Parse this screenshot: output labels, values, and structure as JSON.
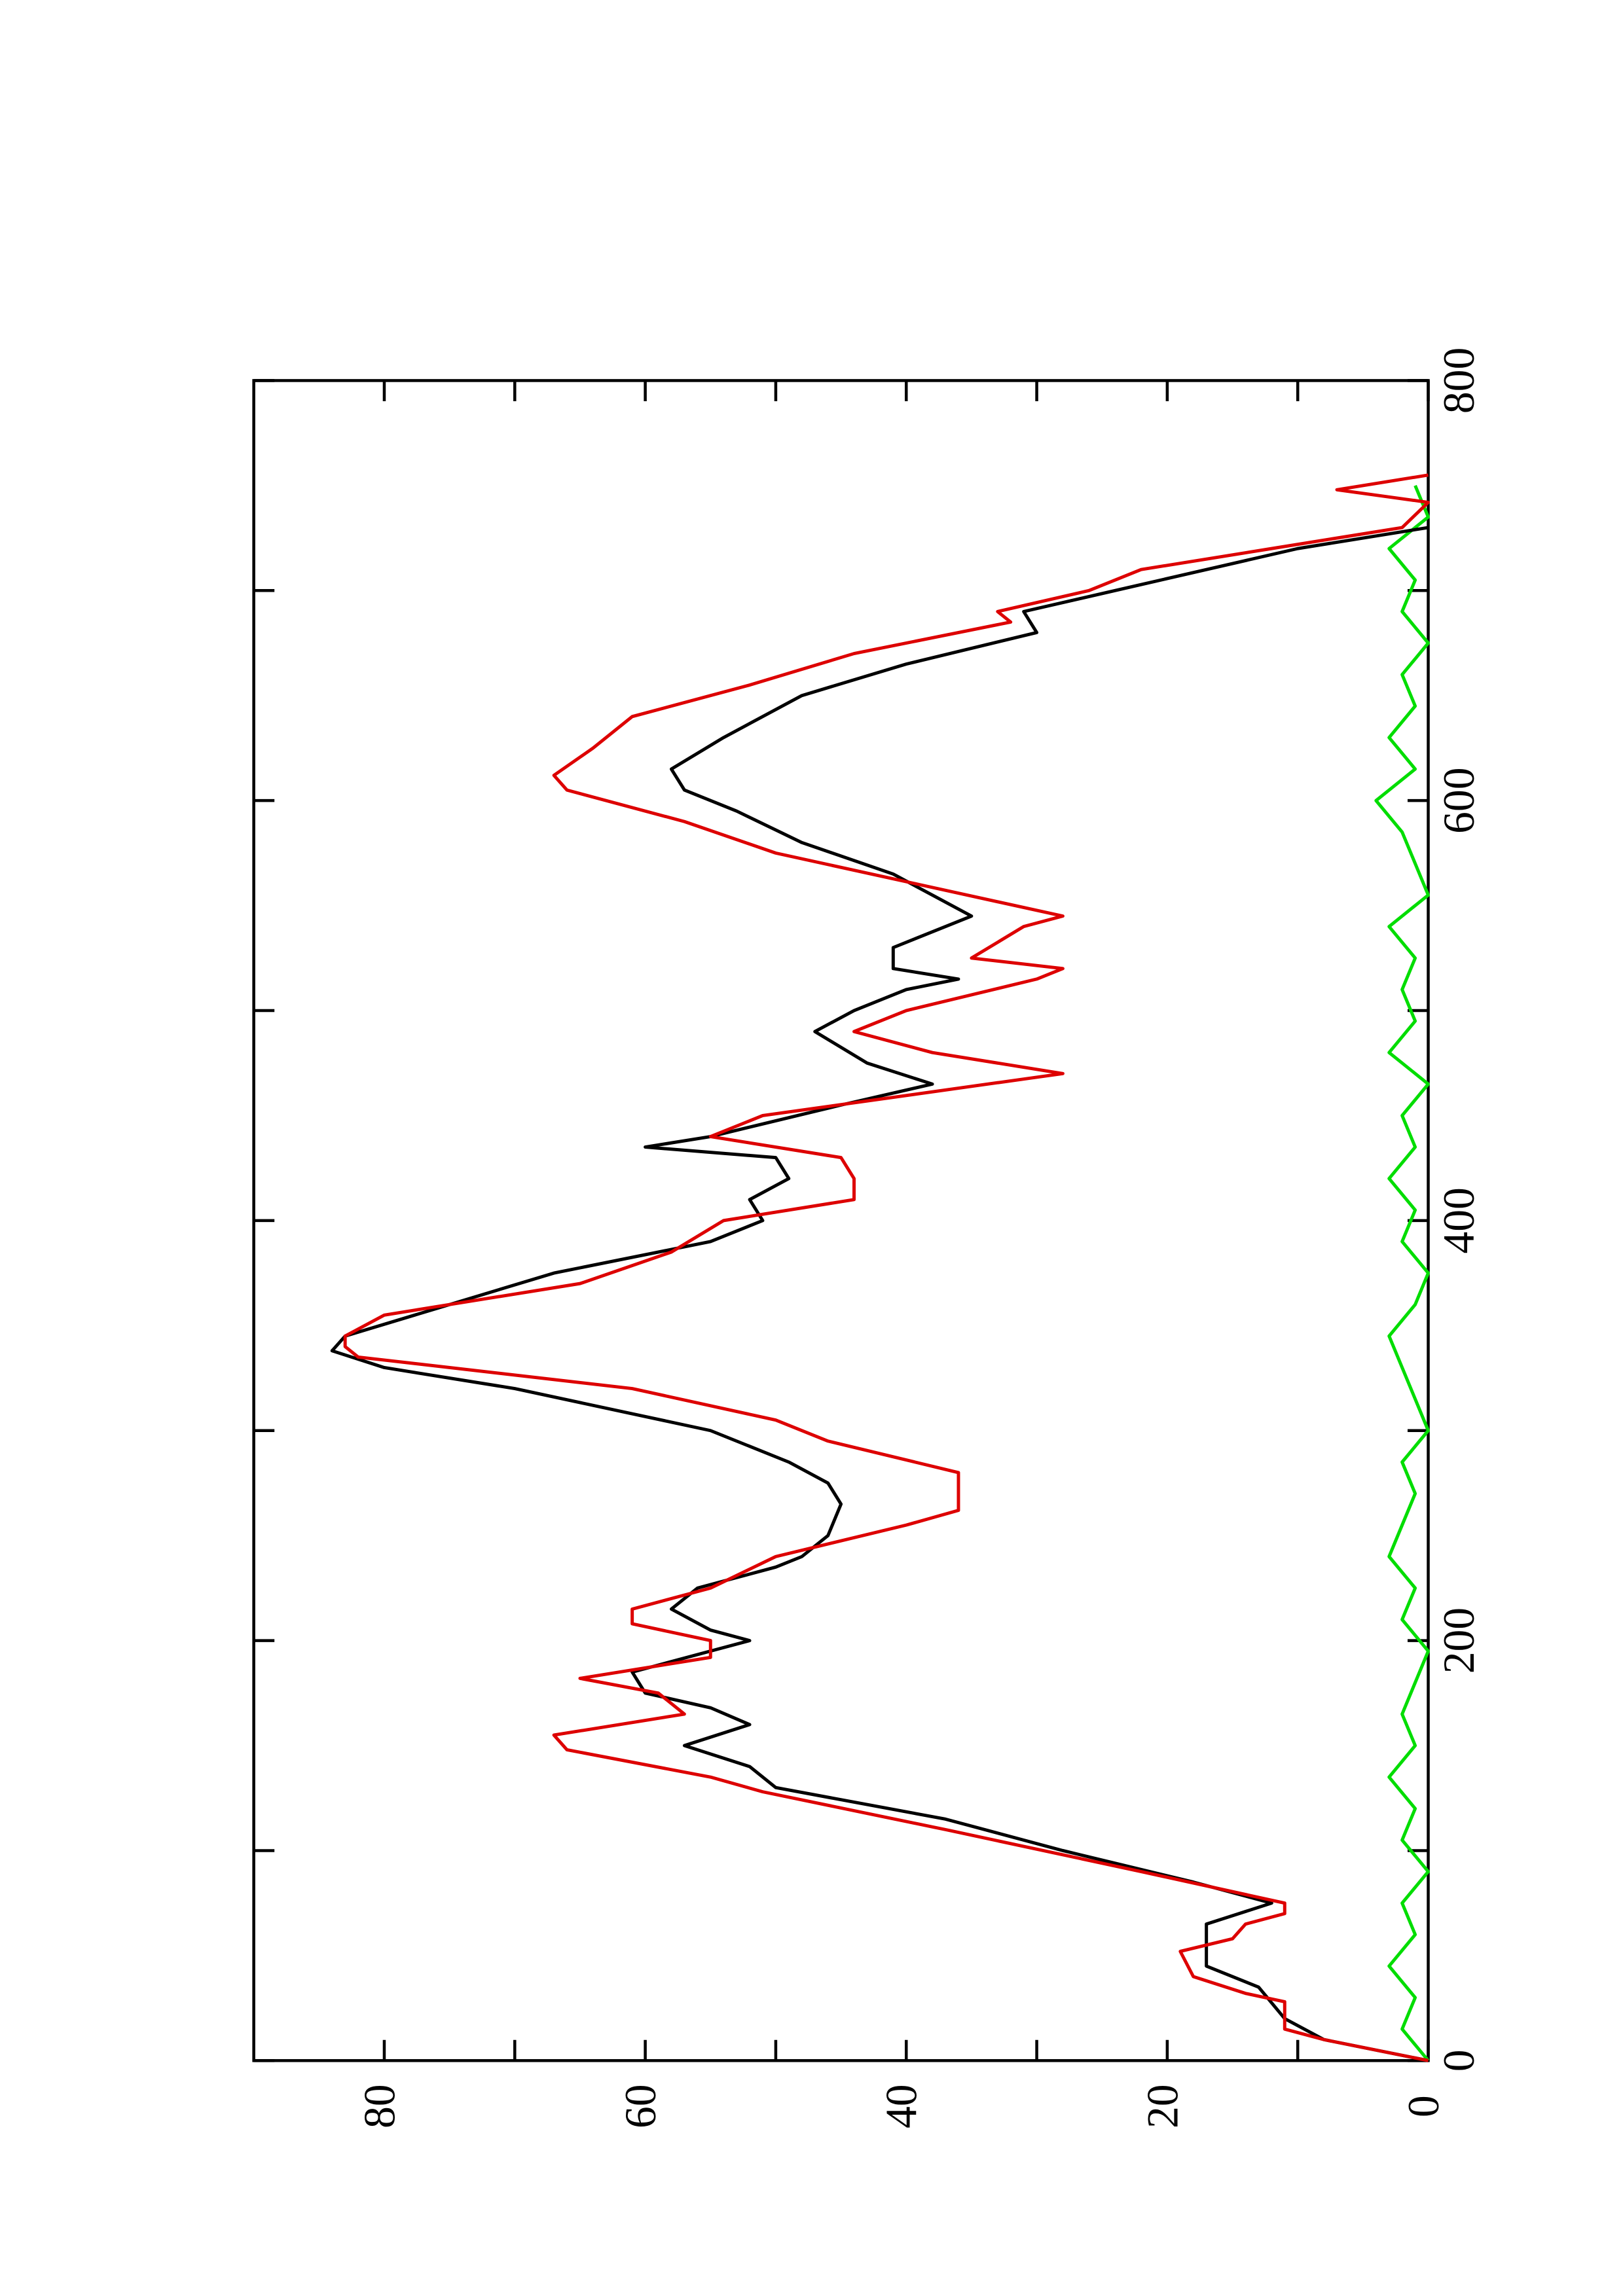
{
  "chart_data": {
    "type": "line",
    "xlim": [
      0,
      800
    ],
    "xticks": [
      0,
      200,
      400,
      600,
      800
    ],
    "xticks_minor": [
      100,
      300,
      500,
      700
    ],
    "ylim": [
      0,
      90
    ],
    "yticks": [
      0,
      20,
      40,
      60,
      80
    ],
    "yticks_minor": [
      10,
      30,
      50,
      70
    ],
    "series": [
      {
        "color": "#dd0000",
        "x": [
          0,
          10,
          15,
          28,
          32,
          40,
          52,
          58,
          65,
          70,
          75,
          90,
          110,
          128,
          135,
          148,
          155,
          165,
          175,
          182,
          192,
          200,
          208,
          215,
          225,
          240,
          255,
          262,
          280,
          295,
          305,
          320,
          335,
          340,
          345,
          355,
          370,
          385,
          400,
          410,
          420,
          430,
          440,
          450,
          470,
          480,
          490,
          500,
          515,
          520,
          525,
          540,
          545,
          560,
          575,
          590,
          605,
          612,
          625,
          640,
          655,
          670,
          685,
          690,
          700,
          710,
          720,
          730,
          742,
          748,
          755
        ],
        "values": [
          0,
          8,
          11,
          11,
          14,
          18,
          19,
          15,
          14,
          11,
          11,
          22,
          37,
          51,
          55,
          66,
          67,
          57,
          59,
          65,
          55,
          55,
          61,
          61,
          55,
          50,
          40,
          36,
          36,
          46,
          50,
          61,
          82,
          83,
          83,
          80,
          65,
          58,
          54,
          44,
          44,
          45,
          55,
          51,
          28,
          38,
          44,
          40,
          30,
          28,
          35,
          31,
          28,
          39,
          50,
          57,
          66,
          67,
          64,
          61,
          52,
          44,
          32,
          33,
          26,
          22,
          12,
          2,
          0,
          7,
          0
        ]
      },
      {
        "color": "#000000",
        "x": [
          0,
          10,
          20,
          35,
          45,
          65,
          75,
          85,
          100,
          115,
          130,
          140,
          150,
          160,
          168,
          175,
          185,
          195,
          200,
          205,
          215,
          225,
          235,
          240,
          250,
          265,
          275,
          285,
          300,
          320,
          330,
          338,
          345,
          360,
          375,
          390,
          400,
          410,
          420,
          430,
          435,
          440,
          455,
          465,
          475,
          490,
          500,
          510,
          515,
          520,
          530,
          545,
          555,
          565,
          580,
          595,
          605,
          615,
          630,
          650,
          665,
          680,
          690,
          700,
          720,
          730
        ],
        "values": [
          0,
          8,
          11,
          13,
          17,
          17,
          12,
          18,
          28,
          37,
          50,
          52,
          57,
          52,
          55,
          60,
          61,
          55,
          52,
          55,
          58,
          56,
          50,
          48,
          46,
          45,
          46,
          49,
          55,
          70,
          80,
          84,
          83,
          75,
          67,
          55,
          51,
          52,
          49,
          50,
          60,
          55,
          45,
          38,
          43,
          47,
          44,
          40,
          36,
          41,
          41,
          35,
          38,
          41,
          48,
          53,
          57,
          58,
          54,
          48,
          40,
          30,
          31,
          24,
          10,
          0
        ]
      },
      {
        "color": "#00dd00",
        "x": [
          0,
          15,
          30,
          45,
          60,
          75,
          90,
          105,
          120,
          135,
          150,
          165,
          180,
          195,
          210,
          225,
          240,
          255,
          270,
          285,
          300,
          315,
          330,
          345,
          360,
          375,
          390,
          405,
          420,
          435,
          450,
          465,
          480,
          495,
          510,
          525,
          540,
          555,
          570,
          585,
          600,
          615,
          630,
          645,
          660,
          675,
          690,
          705,
          720,
          735,
          750
        ],
        "values": [
          0,
          2,
          1,
          3,
          1,
          2,
          0,
          2,
          1,
          3,
          1,
          2,
          1,
          0,
          2,
          1,
          3,
          2,
          1,
          2,
          0,
          1,
          2,
          3,
          1,
          0,
          2,
          1,
          3,
          1,
          2,
          0,
          3,
          1,
          2,
          1,
          3,
          0,
          1,
          2,
          4,
          1,
          3,
          1,
          2,
          0,
          2,
          1,
          3,
          0,
          1
        ]
      }
    ]
  }
}
